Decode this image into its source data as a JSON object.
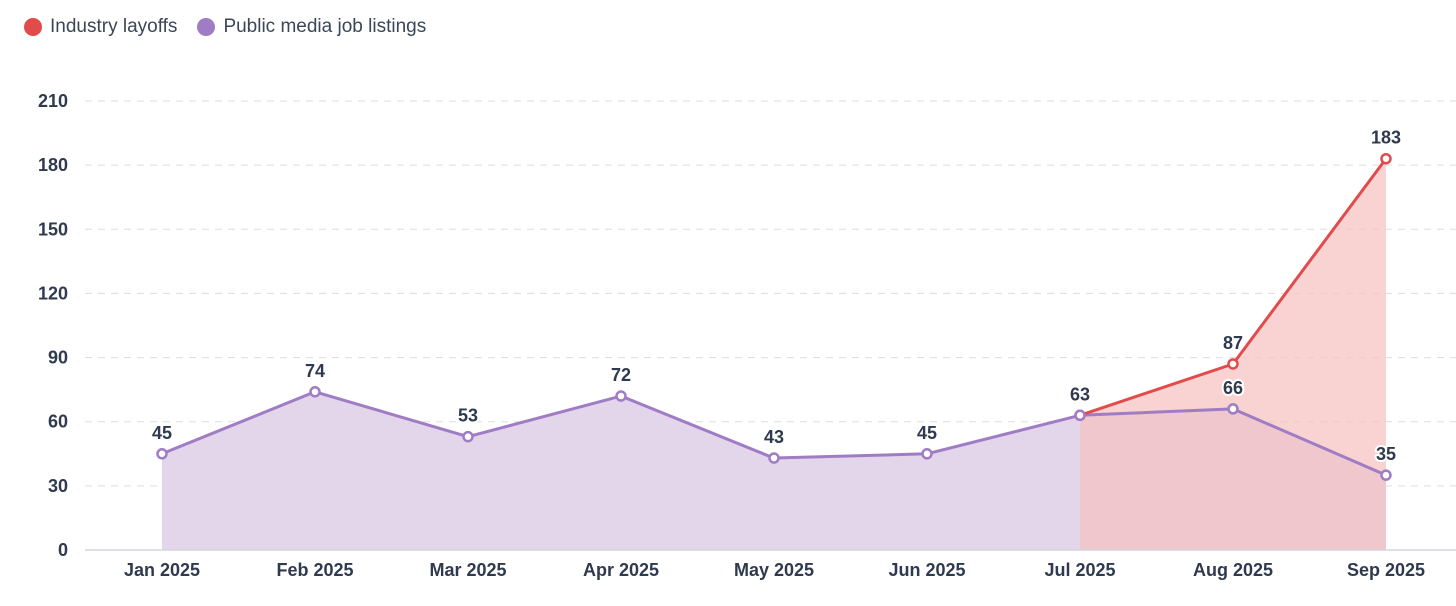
{
  "chart_data": {
    "type": "area",
    "categories": [
      "Jan 2025",
      "Feb 2025",
      "Mar 2025",
      "Apr 2025",
      "May 2025",
      "Jun 2025",
      "Jul 2025",
      "Aug 2025",
      "Sep 2025"
    ],
    "series": [
      {
        "name": "Industry layoffs",
        "color": "#e24b4b",
        "fill": "#f5c2c0",
        "values": [
          null,
          null,
          null,
          null,
          null,
          null,
          63,
          87,
          183
        ]
      },
      {
        "name": "Public media job listings",
        "color": "#a07cc5",
        "fill": "#e3d5ea",
        "values": [
          45,
          74,
          53,
          72,
          43,
          45,
          63,
          66,
          35
        ]
      }
    ],
    "ylim": [
      0,
      210
    ],
    "yticks": [
      0,
      30,
      60,
      90,
      120,
      150,
      180,
      210
    ],
    "grid": true,
    "legend_position": "top-left"
  }
}
